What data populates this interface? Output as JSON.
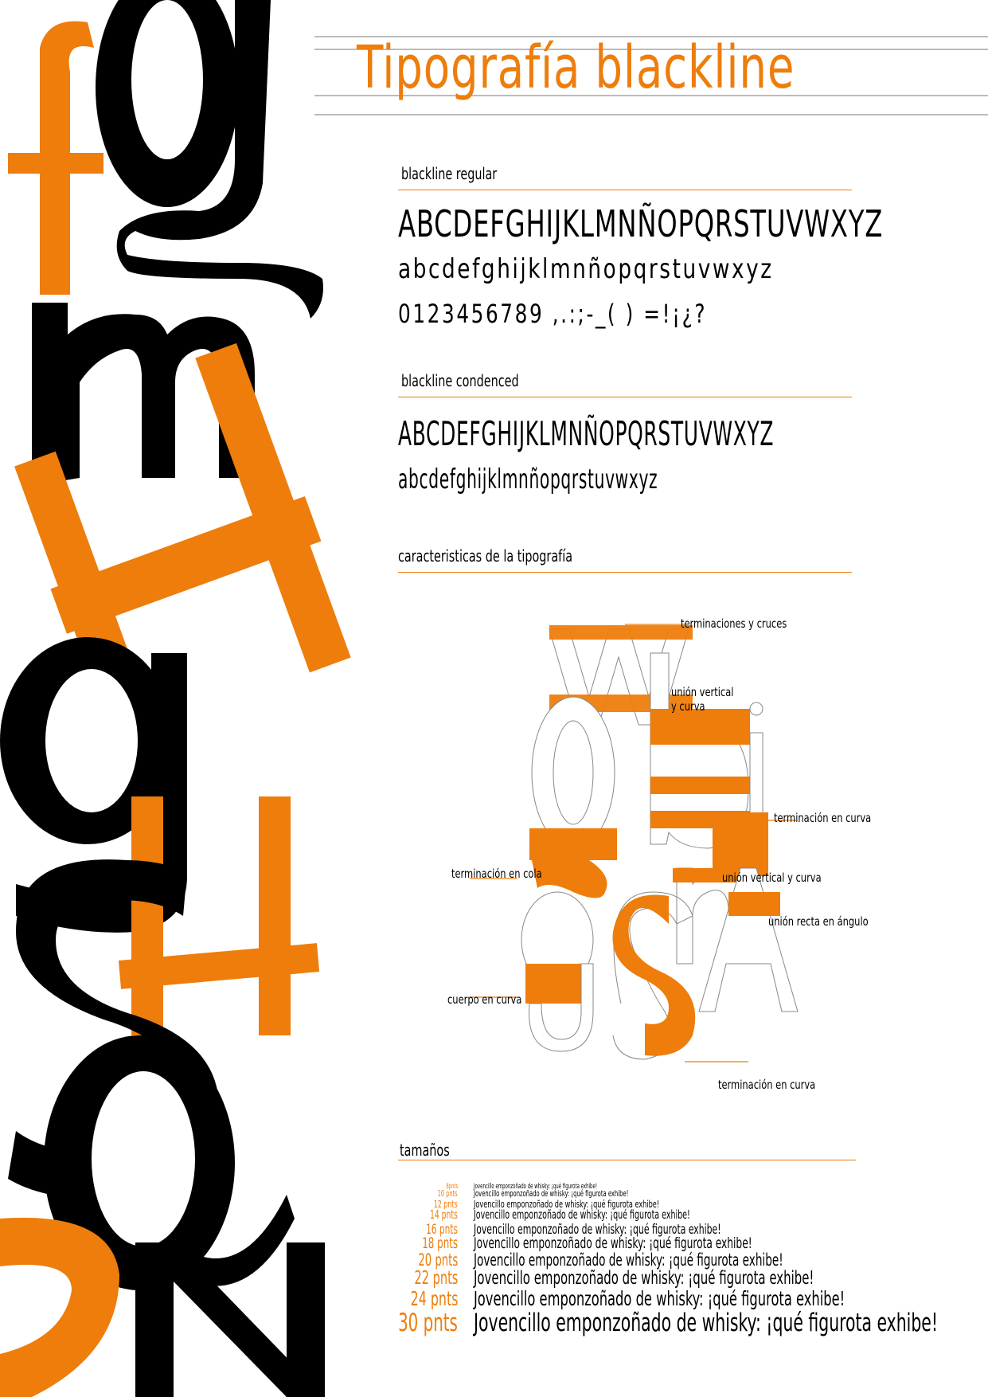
{
  "title": "Tipografía  blackline",
  "colors": {
    "accent": "#ee7d0c",
    "ink": "#000000"
  },
  "regular": {
    "heading": "blackline regular",
    "uppercase": "ABCDEFGHIJKLMNÑOPQRSTUVWXYZ",
    "lowercase": "abcdefghijklmnñopqrstuvwxyz",
    "numbers": "0123456789 ,.:;-_( ) =!¡¿?"
  },
  "condensed": {
    "heading": "blackline condenced",
    "uppercase": "ABCDEFGHIJKLMNÑOPQRSTUVWXYZ",
    "lowercase": "abcdefghijklmnñopqrstuvwxyz"
  },
  "characteristics": {
    "heading": "caracteristicas de la tipografía",
    "glyphs": [
      "w",
      "b",
      "j",
      "g",
      "n",
      "g",
      "S",
      "A"
    ],
    "annotations": [
      "terminaciones y cruces",
      "unión vertical",
      "y curva",
      "terminación en curva",
      "terminación en cola",
      "unión vertical y curva",
      "unión recta en ángulo",
      "cuerpo en curva",
      "terminación en curva"
    ]
  },
  "sizes": {
    "heading": "tamaños",
    "sample": "Jovencillo emponzoñado de whisky: ¡qué figurota exhibe!",
    "items": [
      {
        "label": "8pnts",
        "pt": 8
      },
      {
        "label": "10 pnts",
        "pt": 10
      },
      {
        "label": "12 pnts",
        "pt": 12
      },
      {
        "label": "14 pnts",
        "pt": 14
      },
      {
        "label": "16 pnts",
        "pt": 16
      },
      {
        "label": "18 pnts",
        "pt": 18
      },
      {
        "label": "20 pnts",
        "pt": 20
      },
      {
        "label": "22 pnts",
        "pt": 22
      },
      {
        "label": "24 pnts",
        "pt": 24
      },
      {
        "label": "30 pnts",
        "pt": 30
      }
    ]
  },
  "decoration": {
    "letters": [
      "f",
      "g",
      "m",
      "H",
      "g",
      "H",
      "S",
      "Q",
      "S",
      "N"
    ]
  }
}
